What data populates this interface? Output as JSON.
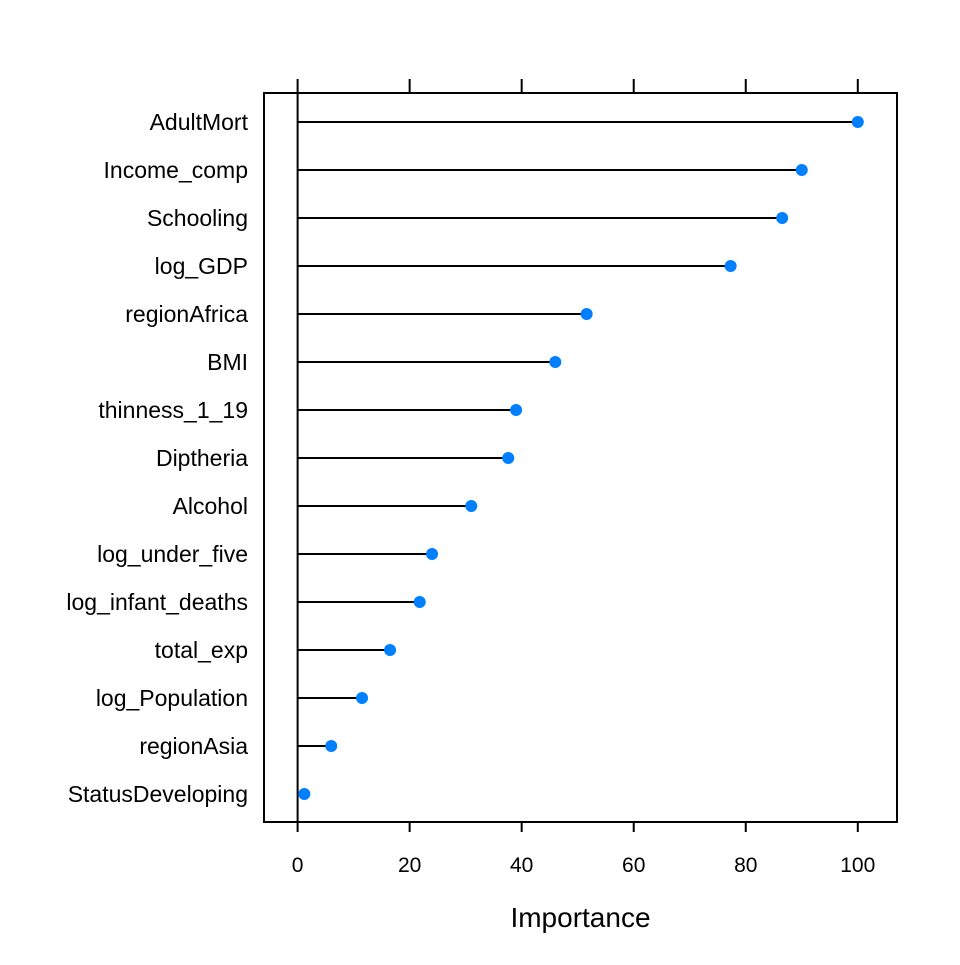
{
  "chart_data": {
    "type": "dotplot",
    "xlabel": "Importance",
    "xlim": [
      -6,
      107
    ],
    "xticks": [
      0,
      20,
      40,
      60,
      80,
      100
    ],
    "grid": false,
    "categories": [
      "AdultMort",
      "Income_comp",
      "Schooling",
      "log_GDP",
      "regionAfrica",
      "BMI",
      "thinness_1_19",
      "Diptheria",
      "Alcohol",
      "log_under_five",
      "log_infant_deaths",
      "total_exp",
      "log_Population",
      "regionAsia",
      "StatusDeveloping"
    ],
    "values": [
      100,
      90,
      86.5,
      77.3,
      51.6,
      46.0,
      39.0,
      37.6,
      31.0,
      24.0,
      21.8,
      16.5,
      11.5,
      6.0,
      1.2
    ],
    "point_color": "#0080ff",
    "line_color": "#000000"
  }
}
